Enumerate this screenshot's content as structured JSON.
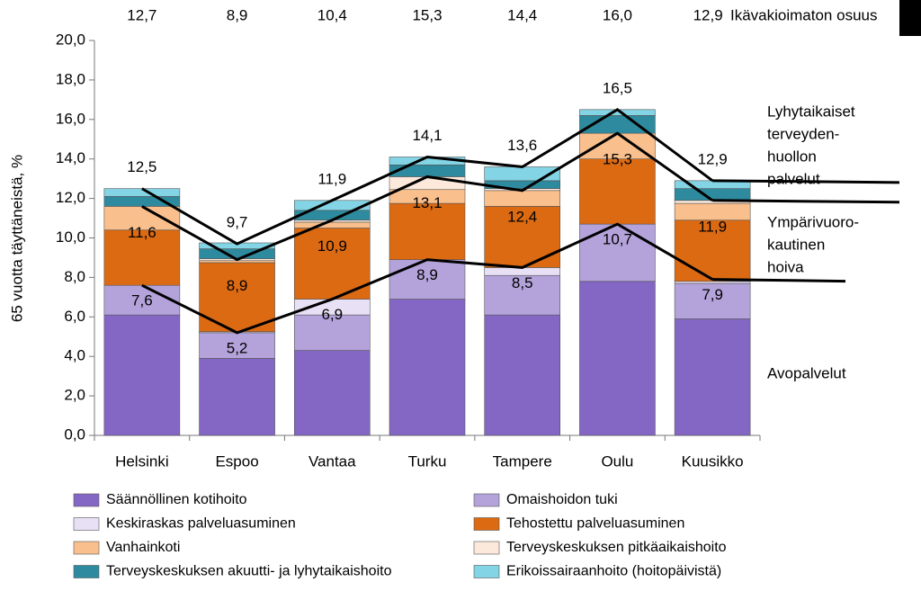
{
  "chart_data": {
    "type": "bar",
    "stacked": true,
    "y_label": "65 vuotta täyttäneistä, %",
    "categories": [
      "Helsinki",
      "Espoo",
      "Vantaa",
      "Turku",
      "Tampere",
      "Oulu",
      "Kuusikko"
    ],
    "series": [
      {
        "name": "Säännöllinen kotihoito",
        "color": "#8466c4",
        "values": [
          6.1,
          3.9,
          4.3,
          6.9,
          6.1,
          7.8,
          5.9
        ]
      },
      {
        "name": "Omaishoidon tuki",
        "color": "#b4a3db",
        "values": [
          1.5,
          1.3,
          1.8,
          2.0,
          2.0,
          2.9,
          1.8
        ]
      },
      {
        "name": "Keskiraskas palveluasuminen",
        "color": "#e8e0f4",
        "values": [
          0,
          0.05,
          0.8,
          0,
          0.4,
          0,
          0.1
        ]
      },
      {
        "name": "Tehostettu palveluasuminen",
        "color": "#db6a12",
        "values": [
          2.8,
          3.5,
          3.6,
          2.85,
          3.1,
          3.3,
          3.1
        ]
      },
      {
        "name": "Vanhainkoti",
        "color": "#f9bf8c",
        "values": [
          1.2,
          0.1,
          0.3,
          0.7,
          0.8,
          1.3,
          0.85
        ]
      },
      {
        "name": "Terveyskeskuksen pitkäaikaishoito",
        "color": "#fde9dc",
        "values": [
          0,
          0.1,
          0.1,
          0.65,
          0.1,
          0,
          0.15
        ]
      },
      {
        "name": "Terveyskeskuksen akuutti- ja lyhytaikaishoito",
        "color": "#2e8a9e",
        "values": [
          0.5,
          0.5,
          0.5,
          0.6,
          0.4,
          0.9,
          0.6
        ]
      },
      {
        "name": "Erikoissairaanhoito (hoitopäivistä)",
        "color": "#83d4e4",
        "values": [
          0.4,
          0.3,
          0.5,
          0.4,
          0.7,
          0.3,
          0.4
        ]
      }
    ],
    "ylim": [
      0,
      20
    ],
    "yticks": [
      {
        "value": 0,
        "label": "0,0"
      },
      {
        "value": 2,
        "label": "2,0"
      },
      {
        "value": 4,
        "label": "4,0"
      },
      {
        "value": 6,
        "label": "6,0"
      },
      {
        "value": 8,
        "label": "8,0"
      },
      {
        "value": 10,
        "label": "10,0"
      },
      {
        "value": 12,
        "label": "12,0"
      },
      {
        "value": 14,
        "label": "14,0"
      },
      {
        "value": 16,
        "label": "16,0"
      },
      {
        "value": 18,
        "label": "18,0"
      },
      {
        "value": 20,
        "label": "20,0"
      }
    ],
    "lines": [
      {
        "color": "#000000",
        "values": [
          7.6,
          5.2,
          6.9,
          8.9,
          8.5,
          10.7,
          7.9
        ],
        "value_labels": [
          "7,6",
          "5,2",
          "6,9",
          "8,9",
          "8,5",
          "10,7",
          "7,9"
        ]
      },
      {
        "color": "#000000",
        "values": [
          11.6,
          8.9,
          10.9,
          13.1,
          12.4,
          15.3,
          11.9
        ],
        "value_labels": [
          "11,6",
          "8,9",
          "10,9",
          "13,1",
          "12,4",
          "15,3",
          "11,9"
        ]
      },
      {
        "color": "#000000",
        "values": [
          12.5,
          9.7,
          11.9,
          14.1,
          13.6,
          16.5,
          12.9
        ],
        "value_labels": [
          "12,5",
          "9,7",
          "11,9",
          "14,1",
          "13,6",
          "16,5",
          "12,9"
        ]
      }
    ],
    "top_row": {
      "label": "Ikävakioimaton osuus",
      "values": [
        12.7,
        8.9,
        10.4,
        15.3,
        14.4,
        16.0,
        12.9
      ],
      "value_labels": [
        "12,7",
        "8,9",
        "10,4",
        "15,3",
        "14,4",
        "16,0",
        "12,9"
      ]
    },
    "side_labels": [
      [
        "Lyhytaikaiset",
        "terveyden-",
        "huollon",
        "palvelut"
      ],
      [
        "Ympärivuoro-",
        "kautinen",
        "hoiva"
      ],
      [
        "Avopalvelut"
      ]
    ]
  }
}
